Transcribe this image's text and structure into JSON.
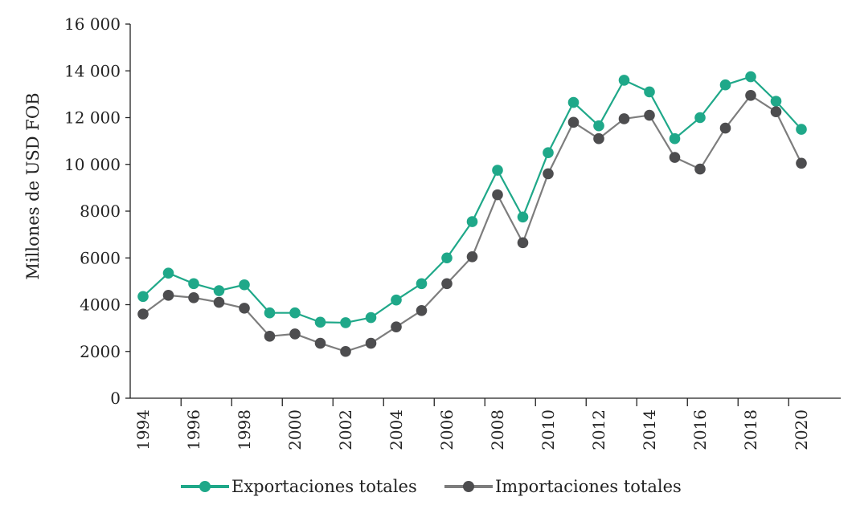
{
  "chart_data": {
    "type": "line",
    "title": "",
    "xlabel": "",
    "ylabel": "Millones de USD FOB",
    "ylim": [
      0,
      16000
    ],
    "y_ticks": [
      0,
      2000,
      4000,
      6000,
      8000,
      10000,
      12000,
      14000,
      16000
    ],
    "y_tick_labels": [
      "0",
      "2000",
      "4000",
      "6000",
      "8000",
      "10 000",
      "12 000",
      "14 000",
      "16 000"
    ],
    "x": [
      1994,
      1995,
      1996,
      1997,
      1998,
      1999,
      2000,
      2001,
      2002,
      2003,
      2004,
      2005,
      2006,
      2007,
      2008,
      2009,
      2010,
      2011,
      2012,
      2013,
      2014,
      2015,
      2016,
      2017,
      2018,
      2019,
      2020
    ],
    "x_tick_labels": [
      "1994",
      "1996",
      "1998",
      "2000",
      "2002",
      "2004",
      "2006",
      "2008",
      "2010",
      "2012",
      "2014",
      "2016",
      "2018",
      "2020"
    ],
    "legend_position": "bottom",
    "grid": false,
    "series": [
      {
        "name": "Exportaciones totales",
        "color": "#1fa889",
        "values": [
          4350,
          5350,
          4900,
          4600,
          4850,
          3650,
          3650,
          3250,
          3230,
          3450,
          4200,
          4900,
          6000,
          7550,
          9750,
          7750,
          10500,
          12650,
          11650,
          13600,
          13100,
          11100,
          12000,
          13400,
          13750,
          12700,
          11500
        ]
      },
      {
        "name": "Importaciones totales",
        "color": "#4d4d4f",
        "line_color": "#7d7d7d",
        "values": [
          3600,
          4400,
          4300,
          4100,
          3850,
          2650,
          2750,
          2350,
          2000,
          2350,
          3050,
          3750,
          4900,
          6050,
          8700,
          6650,
          9600,
          11800,
          11100,
          11950,
          12100,
          10300,
          9800,
          11550,
          12950,
          12250,
          10050
        ]
      }
    ]
  }
}
